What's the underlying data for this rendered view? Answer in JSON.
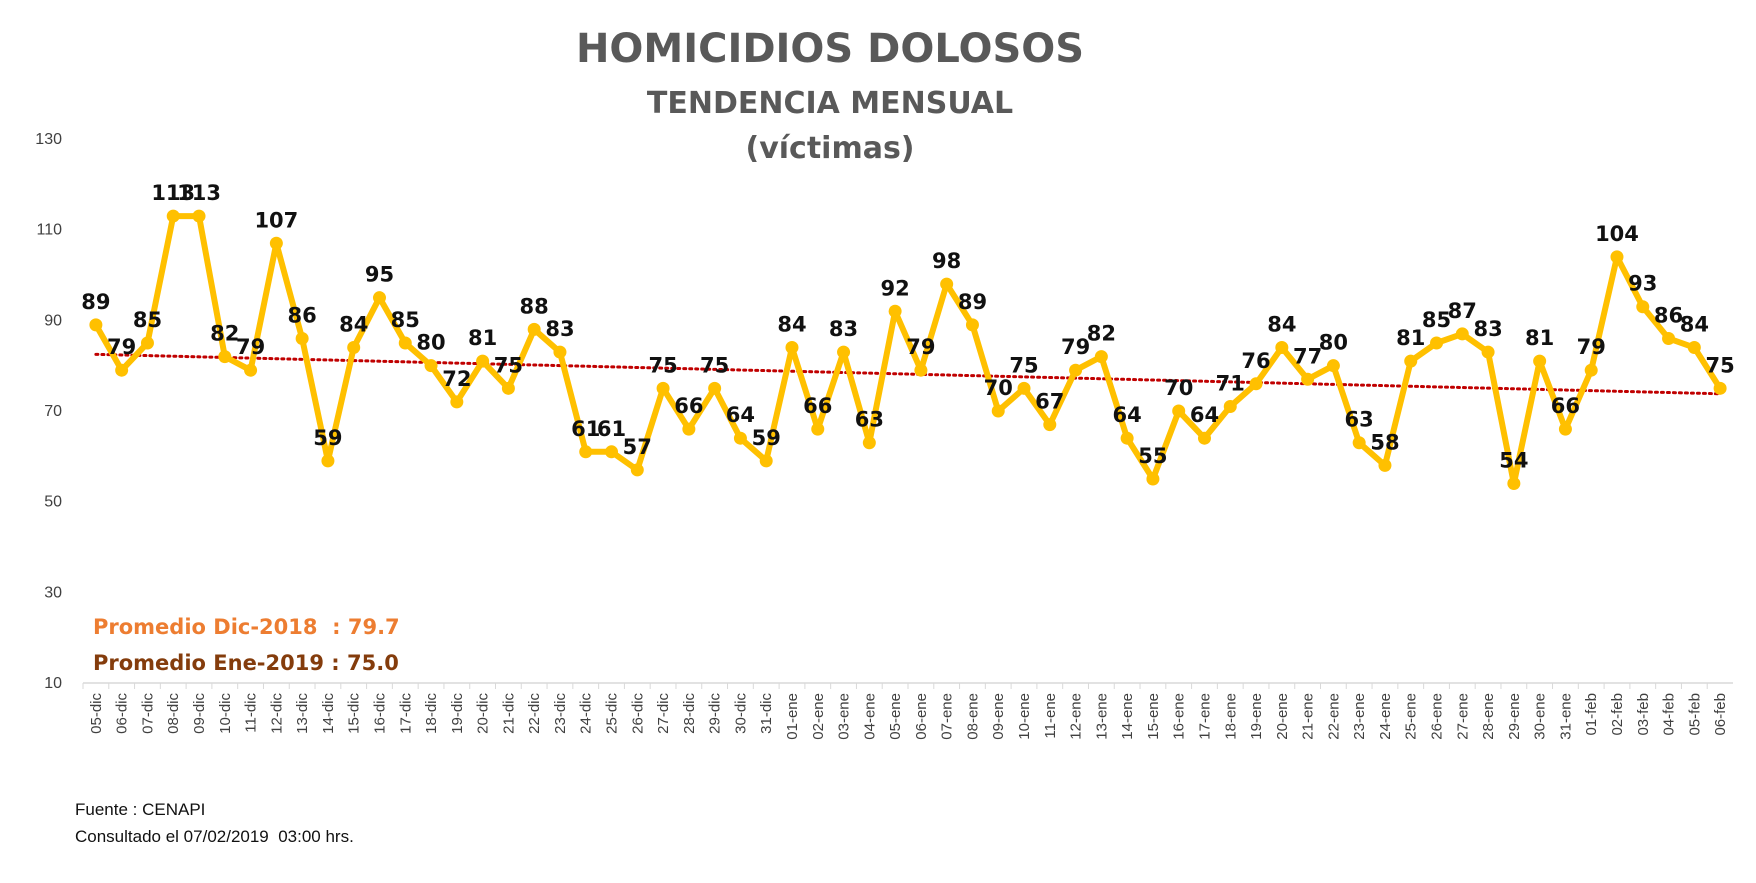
{
  "chart_data": {
    "type": "line",
    "title": "HOMICIDIOS DOLOSOS",
    "subtitle": "TENDENCIA MENSUAL",
    "unit_label": "(víctimas)",
    "categories": [
      "05-dic",
      "06-dic",
      "07-dic",
      "08-dic",
      "09-dic",
      "10-dic",
      "11-dic",
      "12-dic",
      "13-dic",
      "14-dic",
      "15-dic",
      "16-dic",
      "17-dic",
      "18-dic",
      "19-dic",
      "20-dic",
      "21-dic",
      "22-dic",
      "23-dic",
      "24-dic",
      "25-dic",
      "26-dic",
      "27-dic",
      "28-dic",
      "29-dic",
      "30-dic",
      "31-dic",
      "01-ene",
      "02-ene",
      "03-ene",
      "04-ene",
      "05-ene",
      "06-ene",
      "07-ene",
      "08-ene",
      "09-ene",
      "10-ene",
      "11-ene",
      "12-ene",
      "13-ene",
      "14-ene",
      "15-ene",
      "16-ene",
      "17-ene",
      "18-ene",
      "19-ene",
      "20-ene",
      "21-ene",
      "22-ene",
      "23-ene",
      "24-ene",
      "25-ene",
      "26-ene",
      "27-ene",
      "28-ene",
      "29-ene",
      "30-ene",
      "31-ene",
      "01-feb",
      "02-feb",
      "03-feb",
      "04-feb",
      "05-feb",
      "06-feb"
    ],
    "values": [
      89,
      79,
      85,
      113,
      113,
      82,
      79,
      107,
      86,
      59,
      84,
      95,
      85,
      80,
      72,
      81,
      75,
      88,
      83,
      61,
      61,
      57,
      75,
      66,
      75,
      64,
      59,
      84,
      66,
      83,
      63,
      92,
      79,
      98,
      89,
      70,
      75,
      67,
      79,
      82,
      64,
      55,
      70,
      64,
      71,
      76,
      84,
      77,
      80,
      63,
      58,
      81,
      85,
      87,
      83,
      54,
      81,
      66,
      79,
      104,
      93,
      86,
      84,
      75
    ],
    "trend": {
      "start": 82.5,
      "end": 73.8,
      "style": "dotted"
    },
    "ylim": [
      10,
      130
    ],
    "yticks": [
      10,
      30,
      50,
      70,
      90,
      110,
      130
    ],
    "grid": false,
    "legend": "none",
    "colors": {
      "line": "#FFC000",
      "trend": "#C00000",
      "title": "#595959",
      "avg_dic": "#ED7D31",
      "avg_ene": "#843C0C"
    }
  },
  "averages": [
    {
      "label": "Promedio Dic-2018  : 79.7"
    },
    {
      "label": "Promedio Ene-2019 : 75.0"
    }
  ],
  "footer": {
    "source": "Fuente : CENAPI",
    "consulted": "Consultado el 07/02/2019  03:00 hrs."
  }
}
